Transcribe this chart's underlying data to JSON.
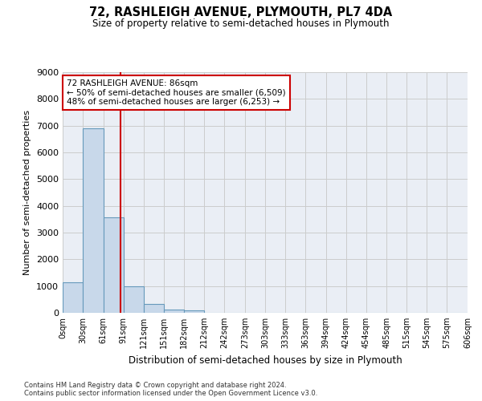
{
  "title": "72, RASHLEIGH AVENUE, PLYMOUTH, PL7 4DA",
  "subtitle": "Size of property relative to semi-detached houses in Plymouth",
  "xlabel": "Distribution of semi-detached houses by size in Plymouth",
  "ylabel": "Number of semi-detached properties",
  "bar_values": [
    1130,
    6900,
    3560,
    1000,
    320,
    130,
    100,
    0,
    0,
    0,
    0,
    0,
    0,
    0,
    0,
    0,
    0,
    0,
    0,
    0
  ],
  "bin_edges": [
    0,
    30,
    61,
    91,
    121,
    151,
    182,
    212,
    242,
    273,
    303,
    333,
    363,
    394,
    424,
    454,
    485,
    515,
    545,
    575,
    606
  ],
  "tick_labels": [
    "0sqm",
    "30sqm",
    "61sqm",
    "91sqm",
    "121sqm",
    "151sqm",
    "182sqm",
    "212sqm",
    "242sqm",
    "273sqm",
    "303sqm",
    "333sqm",
    "363sqm",
    "394sqm",
    "424sqm",
    "454sqm",
    "485sqm",
    "515sqm",
    "545sqm",
    "575sqm",
    "606sqm"
  ],
  "bar_color": "#c8d8ea",
  "bar_edge_color": "#6699bb",
  "vline_x": 86,
  "vline_color": "#cc0000",
  "annotation_text": "72 RASHLEIGH AVENUE: 86sqm\n← 50% of semi-detached houses are smaller (6,509)\n48% of semi-detached houses are larger (6,253) →",
  "annotation_box_color": "#ffffff",
  "annotation_border_color": "#cc0000",
  "ylim": [
    0,
    9000
  ],
  "yticks": [
    0,
    1000,
    2000,
    3000,
    4000,
    5000,
    6000,
    7000,
    8000,
    9000
  ],
  "grid_color": "#cccccc",
  "bg_color": "#eaeef5",
  "footer_line1": "Contains HM Land Registry data © Crown copyright and database right 2024.",
  "footer_line2": "Contains public sector information licensed under the Open Government Licence v3.0."
}
